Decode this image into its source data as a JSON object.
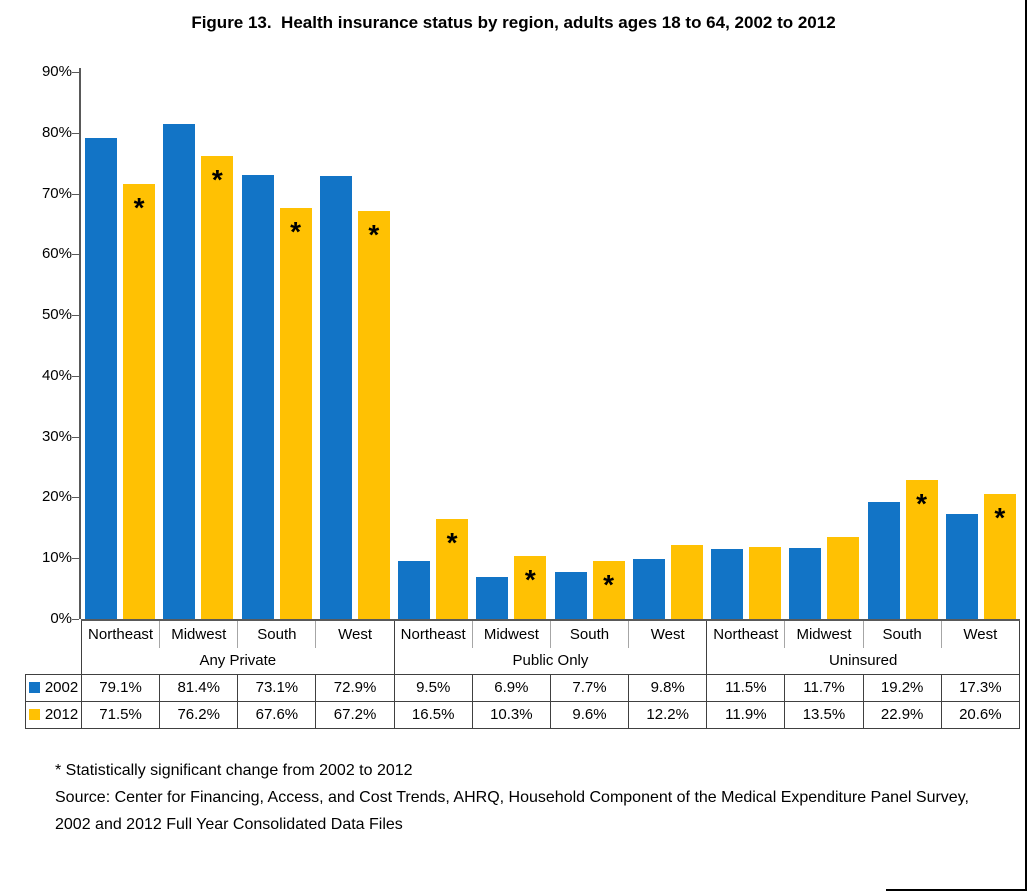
{
  "figure": {
    "title": "Figure 13.  Health insurance status by region, adults ages 18 to 64, 2002 to 2012"
  },
  "chart_data": {
    "type": "bar",
    "title": "Figure 13.  Health insurance status by region, adults ages 18 to 64, 2002 to 2012",
    "groups": [
      "Any Private",
      "Public Only",
      "Uninsured"
    ],
    "regions": [
      "Northeast",
      "Midwest",
      "South",
      "West"
    ],
    "categories": [
      "Northeast",
      "Midwest",
      "South",
      "West",
      "Northeast",
      "Midwest",
      "South",
      "West",
      "Northeast",
      "Midwest",
      "South",
      "West"
    ],
    "series": [
      {
        "name": "2002",
        "color": "#1274C6",
        "values": [
          79.1,
          81.4,
          73.1,
          72.9,
          9.5,
          6.9,
          7.7,
          9.8,
          11.5,
          11.7,
          19.2,
          17.3
        ]
      },
      {
        "name": "2012",
        "color": "#FFC103",
        "values": [
          71.5,
          76.2,
          67.6,
          67.2,
          16.5,
          10.3,
          9.6,
          12.2,
          11.9,
          13.5,
          22.9,
          20.6
        ]
      }
    ],
    "significant_2012": [
      true,
      true,
      true,
      true,
      true,
      true,
      true,
      false,
      false,
      false,
      true,
      true
    ],
    "significance_marker": "*",
    "value_suffix": "%",
    "ylim": [
      0,
      90
    ],
    "ytick_step": 10,
    "ytick_labels": [
      "90%",
      "80%",
      "70%",
      "60%",
      "50%",
      "40%",
      "30%",
      "20%",
      "10%",
      "0%"
    ],
    "grid": false,
    "legend_position": "table-left"
  },
  "footnotes": {
    "lines": [
      "* Statistically significant change from 2002 to 2012",
      "Source: Center for Financing, Access, and Cost Trends, AHRQ, Household Component of the Medical Expenditure Panel Survey,",
      "2002 and 2012 Full Year Consolidated Data Files"
    ]
  }
}
